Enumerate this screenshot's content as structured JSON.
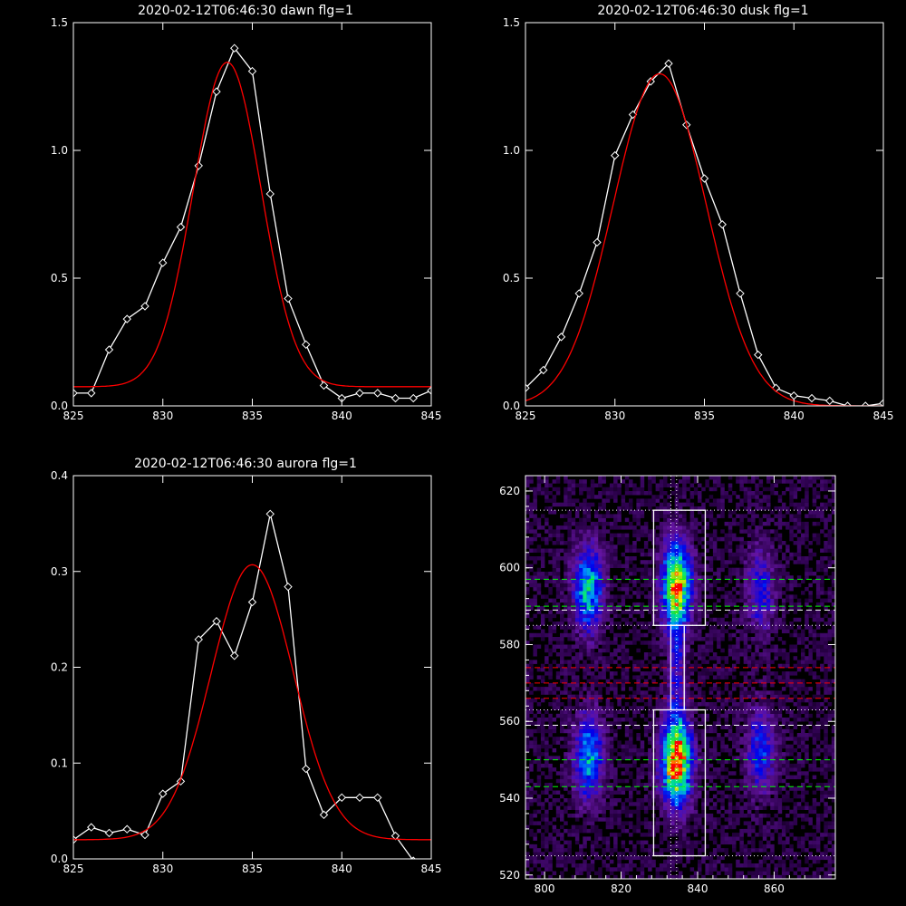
{
  "chart_data": [
    {
      "type": "line",
      "title": "2020-02-12T06:46:30 dawn flg=1",
      "xlim": [
        825,
        845
      ],
      "ylim": [
        0,
        1.5
      ],
      "x_ticks": [
        "825",
        "830",
        "835",
        "840",
        "845"
      ],
      "y_ticks": [
        "0.0",
        "0.5",
        "1.0",
        "1.5"
      ],
      "series": [
        {
          "color": "#ffffff",
          "markers": "diamond",
          "x": [
            825,
            826,
            827,
            828,
            829,
            830,
            831,
            832,
            833,
            834,
            835,
            836,
            837,
            838,
            839,
            840,
            841,
            842,
            843,
            844,
            845
          ],
          "y": [
            0.05,
            0.05,
            0.22,
            0.34,
            0.39,
            0.56,
            0.7,
            0.94,
            1.23,
            1.4,
            1.31,
            0.83,
            0.42,
            0.24,
            0.08,
            0.03,
            0.05,
            0.05,
            0.03,
            0.03,
            0.06
          ]
        },
        {
          "color": "#ff0000",
          "markers": "none",
          "model": "gaussian",
          "params": {
            "amplitude": 1.27,
            "center": 833.6,
            "sigma": 1.9,
            "offset": 0.075
          }
        }
      ]
    },
    {
      "type": "line",
      "title": "2020-02-12T06:46:30 dusk flg=1",
      "xlim": [
        825,
        845
      ],
      "ylim": [
        0,
        1.5
      ],
      "x_ticks": [
        "825",
        "830",
        "835",
        "840",
        "845"
      ],
      "y_ticks": [
        "0.0",
        "0.5",
        "1.0",
        "1.5"
      ],
      "series": [
        {
          "color": "#ffffff",
          "markers": "diamond",
          "x": [
            825,
            826,
            827,
            828,
            829,
            830,
            831,
            832,
            833,
            834,
            835,
            836,
            837,
            838,
            839,
            840,
            841,
            842,
            843,
            844,
            845
          ],
          "y": [
            0.07,
            0.14,
            0.27,
            0.44,
            0.64,
            0.98,
            1.14,
            1.27,
            1.34,
            1.1,
            0.89,
            0.71,
            0.44,
            0.2,
            0.07,
            0.04,
            0.03,
            0.02,
            0.0,
            0.0,
            0.01
          ]
        },
        {
          "color": "#ff0000",
          "markers": "none",
          "model": "gaussian",
          "params": {
            "amplitude": 1.3,
            "center": 832.5,
            "sigma": 2.6,
            "offset": 0.0
          }
        }
      ]
    },
    {
      "type": "line",
      "title": "2020-02-12T06:46:30 aurora flg=1",
      "xlim": [
        825,
        845
      ],
      "ylim": [
        0,
        0.4
      ],
      "x_ticks": [
        "825",
        "830",
        "835",
        "840",
        "845"
      ],
      "y_ticks": [
        "0.0",
        "0.1",
        "0.2",
        "0.3",
        "0.4"
      ],
      "series": [
        {
          "color": "#ffffff",
          "markers": "diamond",
          "x": [
            825,
            826,
            827,
            828,
            829,
            830,
            831,
            832,
            833,
            834,
            835,
            836,
            837,
            838,
            839,
            840,
            841,
            842,
            843,
            844,
            845
          ],
          "y": [
            0.02,
            0.033,
            0.027,
            0.031,
            0.025,
            0.068,
            0.081,
            0.229,
            0.248,
            0.212,
            0.268,
            0.36,
            0.284,
            0.094,
            0.046,
            0.064,
            0.064,
            0.064,
            0.024,
            -0.002,
            -0.01
          ]
        },
        {
          "color": "#ff0000",
          "markers": "none",
          "model": "gaussian",
          "params": {
            "amplitude": 0.287,
            "center": 835.0,
            "sigma": 2.3,
            "offset": 0.02
          }
        }
      ]
    },
    {
      "type": "heatmap",
      "title": "",
      "xlim": [
        795,
        876
      ],
      "ylim": [
        519,
        624
      ],
      "x_ticks": [
        "800",
        "820",
        "840",
        "860"
      ],
      "y_ticks": [
        "520",
        "540",
        "560",
        "580",
        "600",
        "620"
      ],
      "spots": [
        {
          "x": 811,
          "y": 594,
          "intensity": 0.55
        },
        {
          "x": 811,
          "y": 550,
          "intensity": 0.5
        },
        {
          "x": 834,
          "y": 595,
          "intensity": 0.85
        },
        {
          "x": 834,
          "y": 549,
          "intensity": 1.0
        },
        {
          "x": 856,
          "y": 594,
          "intensity": 0.3
        },
        {
          "x": 856,
          "y": 552,
          "intensity": 0.35
        },
        {
          "x": 834,
          "y": 573,
          "intensity": 0.25
        }
      ],
      "boxes": [
        {
          "x": [
            828.5,
            842
          ],
          "y": [
            585,
            615
          ]
        },
        {
          "x": [
            833,
            836.5
          ],
          "y": [
            563,
            585
          ]
        },
        {
          "x": [
            828.5,
            842
          ],
          "y": [
            525,
            563
          ]
        }
      ],
      "vlines_dotted": [
        833.0,
        834.5
      ],
      "hlines": [
        {
          "y": 615,
          "color": "#ffffff",
          "style": "dotted"
        },
        {
          "y": 597,
          "color": "#00ff00",
          "style": "dashed"
        },
        {
          "y": 590,
          "color": "#00ff00",
          "style": "dashed"
        },
        {
          "y": 589,
          "color": "#ffffff",
          "style": "dashed"
        },
        {
          "y": 585,
          "color": "#ffffff",
          "style": "dotted"
        },
        {
          "y": 574,
          "color": "#ff0000",
          "style": "dashed"
        },
        {
          "y": 570,
          "color": "#ff0000",
          "style": "dashed"
        },
        {
          "y": 566,
          "color": "#ff0000",
          "style": "dashed"
        },
        {
          "y": 563,
          "color": "#ffffff",
          "style": "dotted"
        },
        {
          "y": 559,
          "color": "#ffffff",
          "style": "dashed"
        },
        {
          "y": 550,
          "color": "#00ff00",
          "style": "dashed"
        },
        {
          "y": 543,
          "color": "#00ff00",
          "style": "dashed"
        },
        {
          "y": 525,
          "color": "#ffffff",
          "style": "dotted"
        }
      ]
    }
  ]
}
